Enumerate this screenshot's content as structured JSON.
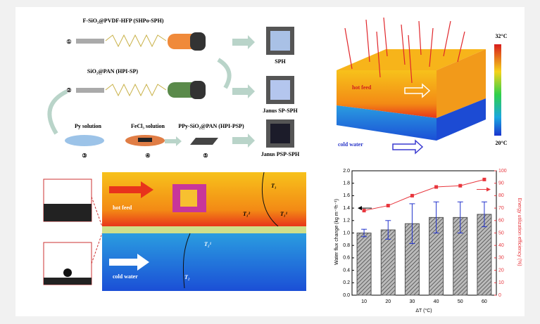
{
  "fabrication": {
    "steps": [
      "F-SiO₂@PVDF-HFP (SHPo-SPH)",
      "SiO₂@PAN (HPI-SP)",
      "Py solution",
      "FeCl₃ solution",
      "PPy-SiO₂@PAN (HPI-PSP)"
    ],
    "numbers": [
      "①",
      "②",
      "③",
      "④",
      "⑤"
    ],
    "products": [
      "SPH",
      "Janus SP-SPH",
      "Janus PSP-SPH"
    ]
  },
  "simulation": {
    "max_temp": "32°C",
    "min_temp": "20°C",
    "hot": "hot feed",
    "cold": "cold water"
  },
  "schematic": {
    "hot": "hot feed",
    "cold": "cold water",
    "temps": [
      "T₁",
      "T₁²",
      "T₁¹",
      "T₂¹",
      "T₂"
    ]
  },
  "chart_data": {
    "type": "bar",
    "xlabel": "ΔT (°C)",
    "ylabel": "Water flux change (kg m⁻²h⁻¹)",
    "y2label": "Energy utilization efficiency (%)",
    "categories": [
      "10",
      "20",
      "30",
      "40",
      "50",
      "60"
    ],
    "ylim": [
      0,
      2.0
    ],
    "yticks": [
      {
        "value": 0,
        "label": "0.0"
      },
      {
        "value": 0.2,
        "label": "0.2"
      },
      {
        "value": 0.4,
        "label": "0.4"
      },
      {
        "value": 0.6,
        "label": "0.6"
      },
      {
        "value": 0.8,
        "label": "0.8"
      },
      {
        "value": 1.0,
        "label": "1.0"
      },
      {
        "value": 1.2,
        "label": "1.2"
      },
      {
        "value": 1.4,
        "label": "1.4"
      },
      {
        "value": 1.6,
        "label": "1.6"
      },
      {
        "value": 1.8,
        "label": "1.8"
      },
      {
        "value": 2.0,
        "label": "2.0"
      }
    ],
    "y2lim": [
      0,
      100
    ],
    "y2ticks": [
      0,
      10,
      20,
      30,
      40,
      50,
      60,
      70,
      80,
      90,
      100
    ],
    "series": [
      {
        "color": "#555555",
        "values": [
          1.0,
          1.05,
          1.15,
          1.25,
          1.25,
          1.3
        ],
        "errors": [
          0.06,
          0.15,
          0.32,
          0.25,
          0.25,
          0.2
        ],
        "error_color": "#2233cc"
      },
      {
        "color": "#e8363d",
        "axis": "y2",
        "values": [
          68,
          72,
          80,
          87,
          88,
          93
        ]
      }
    ]
  }
}
